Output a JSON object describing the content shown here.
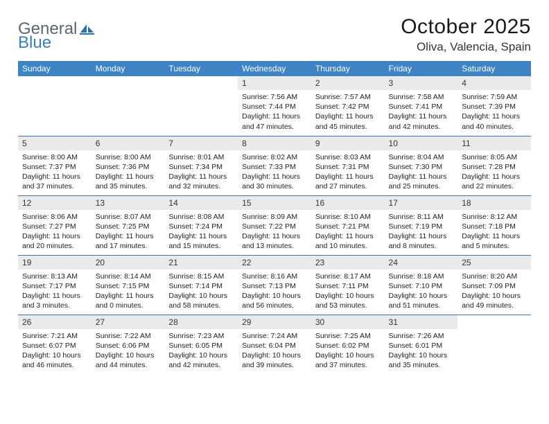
{
  "brand": {
    "part1": "General",
    "part2": "Blue"
  },
  "title": "October 2025",
  "location": "Oliva, Valencia, Spain",
  "colors": {
    "header_bg": "#3e83c3",
    "header_text": "#ffffff",
    "row_divider": "#3e74a8",
    "daynum_bg": "#eaeaea",
    "logo_gray": "#5b6670",
    "logo_blue": "#3b7bbf",
    "page_bg": "#ffffff"
  },
  "fonts": {
    "body_pt": 10.5,
    "header_pt": 12,
    "title_pt": 30,
    "location_pt": 17,
    "logo_pt": 24
  },
  "weekdays": [
    "Sunday",
    "Monday",
    "Tuesday",
    "Wednesday",
    "Thursday",
    "Friday",
    "Saturday"
  ],
  "weeks": [
    [
      null,
      null,
      null,
      {
        "n": "1",
        "sunrise": "7:56 AM",
        "sunset": "7:44 PM",
        "daylight": "11 hours and 47 minutes."
      },
      {
        "n": "2",
        "sunrise": "7:57 AM",
        "sunset": "7:42 PM",
        "daylight": "11 hours and 45 minutes."
      },
      {
        "n": "3",
        "sunrise": "7:58 AM",
        "sunset": "7:41 PM",
        "daylight": "11 hours and 42 minutes."
      },
      {
        "n": "4",
        "sunrise": "7:59 AM",
        "sunset": "7:39 PM",
        "daylight": "11 hours and 40 minutes."
      }
    ],
    [
      {
        "n": "5",
        "sunrise": "8:00 AM",
        "sunset": "7:37 PM",
        "daylight": "11 hours and 37 minutes."
      },
      {
        "n": "6",
        "sunrise": "8:00 AM",
        "sunset": "7:36 PM",
        "daylight": "11 hours and 35 minutes."
      },
      {
        "n": "7",
        "sunrise": "8:01 AM",
        "sunset": "7:34 PM",
        "daylight": "11 hours and 32 minutes."
      },
      {
        "n": "8",
        "sunrise": "8:02 AM",
        "sunset": "7:33 PM",
        "daylight": "11 hours and 30 minutes."
      },
      {
        "n": "9",
        "sunrise": "8:03 AM",
        "sunset": "7:31 PM",
        "daylight": "11 hours and 27 minutes."
      },
      {
        "n": "10",
        "sunrise": "8:04 AM",
        "sunset": "7:30 PM",
        "daylight": "11 hours and 25 minutes."
      },
      {
        "n": "11",
        "sunrise": "8:05 AM",
        "sunset": "7:28 PM",
        "daylight": "11 hours and 22 minutes."
      }
    ],
    [
      {
        "n": "12",
        "sunrise": "8:06 AM",
        "sunset": "7:27 PM",
        "daylight": "11 hours and 20 minutes."
      },
      {
        "n": "13",
        "sunrise": "8:07 AM",
        "sunset": "7:25 PM",
        "daylight": "11 hours and 17 minutes."
      },
      {
        "n": "14",
        "sunrise": "8:08 AM",
        "sunset": "7:24 PM",
        "daylight": "11 hours and 15 minutes."
      },
      {
        "n": "15",
        "sunrise": "8:09 AM",
        "sunset": "7:22 PM",
        "daylight": "11 hours and 13 minutes."
      },
      {
        "n": "16",
        "sunrise": "8:10 AM",
        "sunset": "7:21 PM",
        "daylight": "11 hours and 10 minutes."
      },
      {
        "n": "17",
        "sunrise": "8:11 AM",
        "sunset": "7:19 PM",
        "daylight": "11 hours and 8 minutes."
      },
      {
        "n": "18",
        "sunrise": "8:12 AM",
        "sunset": "7:18 PM",
        "daylight": "11 hours and 5 minutes."
      }
    ],
    [
      {
        "n": "19",
        "sunrise": "8:13 AM",
        "sunset": "7:17 PM",
        "daylight": "11 hours and 3 minutes."
      },
      {
        "n": "20",
        "sunrise": "8:14 AM",
        "sunset": "7:15 PM",
        "daylight": "11 hours and 0 minutes."
      },
      {
        "n": "21",
        "sunrise": "8:15 AM",
        "sunset": "7:14 PM",
        "daylight": "10 hours and 58 minutes."
      },
      {
        "n": "22",
        "sunrise": "8:16 AM",
        "sunset": "7:13 PM",
        "daylight": "10 hours and 56 minutes."
      },
      {
        "n": "23",
        "sunrise": "8:17 AM",
        "sunset": "7:11 PM",
        "daylight": "10 hours and 53 minutes."
      },
      {
        "n": "24",
        "sunrise": "8:18 AM",
        "sunset": "7:10 PM",
        "daylight": "10 hours and 51 minutes."
      },
      {
        "n": "25",
        "sunrise": "8:20 AM",
        "sunset": "7:09 PM",
        "daylight": "10 hours and 49 minutes."
      }
    ],
    [
      {
        "n": "26",
        "sunrise": "7:21 AM",
        "sunset": "6:07 PM",
        "daylight": "10 hours and 46 minutes."
      },
      {
        "n": "27",
        "sunrise": "7:22 AM",
        "sunset": "6:06 PM",
        "daylight": "10 hours and 44 minutes."
      },
      {
        "n": "28",
        "sunrise": "7:23 AM",
        "sunset": "6:05 PM",
        "daylight": "10 hours and 42 minutes."
      },
      {
        "n": "29",
        "sunrise": "7:24 AM",
        "sunset": "6:04 PM",
        "daylight": "10 hours and 39 minutes."
      },
      {
        "n": "30",
        "sunrise": "7:25 AM",
        "sunset": "6:02 PM",
        "daylight": "10 hours and 37 minutes."
      },
      {
        "n": "31",
        "sunrise": "7:26 AM",
        "sunset": "6:01 PM",
        "daylight": "10 hours and 35 minutes."
      },
      null
    ]
  ],
  "labels": {
    "sunrise": "Sunrise: ",
    "sunset": "Sunset: ",
    "daylight": "Daylight: "
  }
}
